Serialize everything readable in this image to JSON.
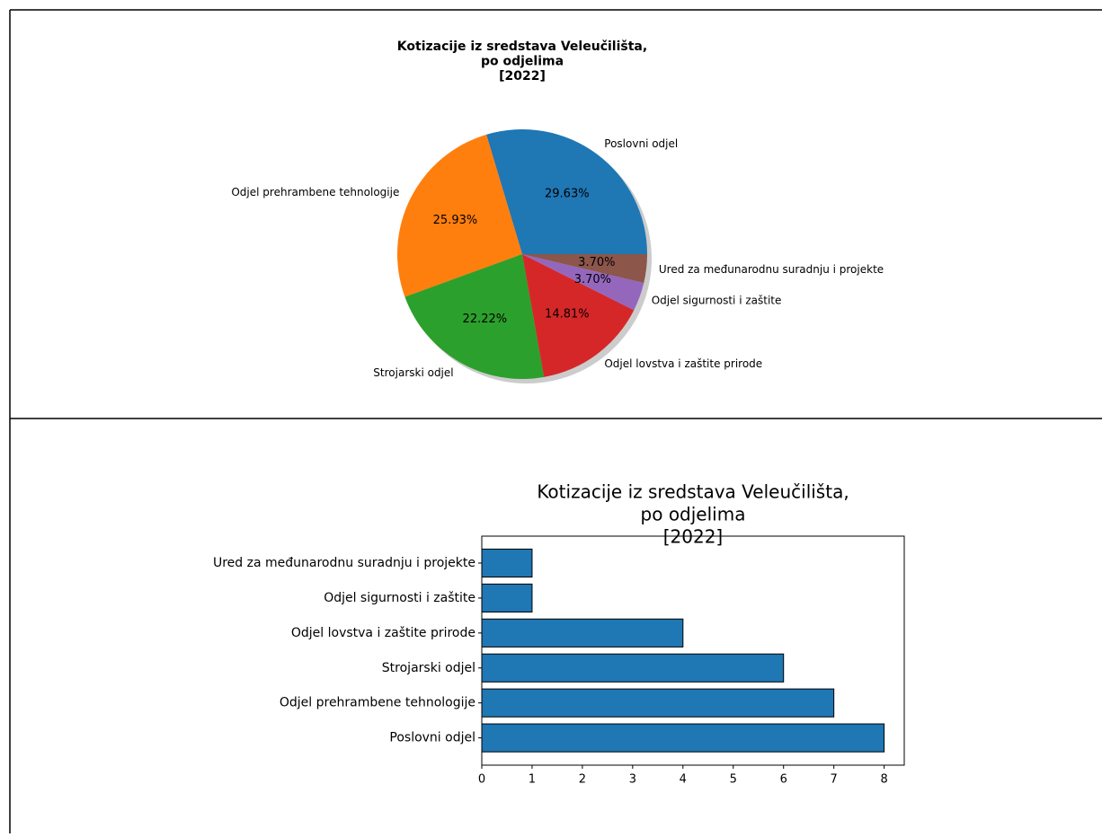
{
  "chart_data": [
    {
      "type": "pie",
      "title": [
        "Kotizacije iz sredstava Veleučilišta,",
        "po odjelima",
        "[2022]"
      ],
      "categories": [
        "Poslovni odjel",
        "Odjel prehrambene tehnologije",
        "Strojarski odjel",
        "Odjel lovstva i zaštite prirode",
        "Odjel sigurnosti i zaštite",
        "Ured za međunarodnu suradnju i projekte"
      ],
      "values": [
        29.63,
        25.93,
        22.22,
        14.81,
        3.7,
        3.7
      ],
      "value_labels": [
        "29.63%",
        "25.93%",
        "22.22%",
        "14.81%",
        "3.70%",
        "3.70%"
      ],
      "colors": [
        "#1f77b4",
        "#ff7f0e",
        "#2ca02c",
        "#d62728",
        "#9467bd",
        "#8c564b"
      ],
      "shadow": true
    },
    {
      "type": "barh",
      "title": [
        "Kotizacije iz sredstava Veleučilišta,",
        "po odjelima",
        "[2022]"
      ],
      "categories": [
        "Poslovni odjel",
        "Odjel prehrambene tehnologije",
        "Strojarski odjel",
        "Odjel lovstva i zaštite prirode",
        "Odjel sigurnosti i zaštite",
        "Ured za međunarodnu suradnju i projekte"
      ],
      "values": [
        8,
        7,
        6,
        4,
        1,
        1
      ],
      "color": "#1f77b4",
      "xlim": [
        0,
        8.4
      ],
      "xticks": [
        0,
        1,
        2,
        3,
        4,
        5,
        6,
        7,
        8
      ]
    }
  ]
}
